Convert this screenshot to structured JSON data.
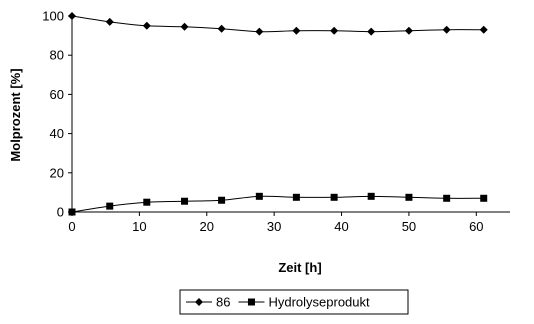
{
  "chart_data": {
    "type": "line",
    "title": "",
    "xlabel": "Zeit [h]",
    "ylabel": "Molprozent [%]",
    "xlim": [
      0,
      65
    ],
    "ylim": [
      0,
      100
    ],
    "xticks": [
      "0",
      "10",
      "20",
      "30",
      "40",
      "50",
      "60"
    ],
    "yticks": [
      "0",
      "20",
      "40",
      "60",
      "80",
      "100"
    ],
    "grid": false,
    "legend_position": "bottom",
    "series": [
      {
        "name": "86",
        "marker": "diamond",
        "color": "#000000",
        "x": [
          0,
          5.6,
          11.1,
          16.7,
          22.2,
          27.8,
          33.3,
          38.9,
          44.4,
          50.0,
          55.6,
          61.1
        ],
        "y": [
          100,
          97,
          95,
          94.5,
          93.5,
          92,
          92.5,
          92.5,
          92,
          92.5,
          93,
          93
        ]
      },
      {
        "name": "Hydrolyseprodukt",
        "marker": "square",
        "color": "#000000",
        "x": [
          0,
          5.6,
          11.1,
          16.7,
          22.2,
          27.8,
          33.3,
          38.9,
          44.4,
          50.0,
          55.6,
          61.1
        ],
        "y": [
          0,
          3,
          5,
          5.5,
          6,
          8,
          7.5,
          7.5,
          8,
          7.5,
          7,
          7
        ]
      }
    ]
  }
}
